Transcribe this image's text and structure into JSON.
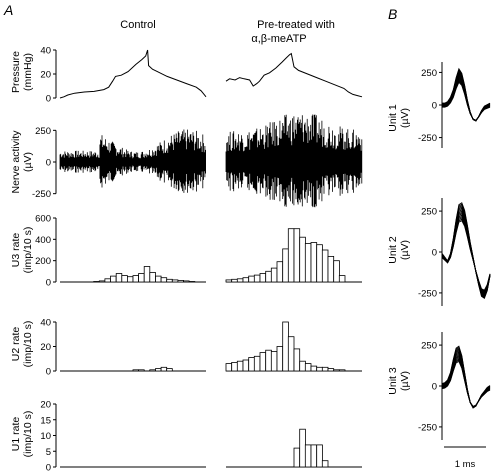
{
  "panels": {
    "a": "A",
    "b": "B"
  },
  "columns": {
    "control": "Control",
    "pretreated_line1": "Pre-treated with",
    "pretreated_line2": "α,β-meATP"
  },
  "scale_bar": {
    "label": "1 ms"
  },
  "chart_data": [
    {
      "type": "line",
      "id": "pressure",
      "ylabel": [
        "Pressure",
        "(mmHg)"
      ],
      "ylim": [
        0,
        45
      ],
      "yticks": [
        0,
        20,
        40
      ],
      "x_label": "",
      "series": [
        {
          "column": "control",
          "x": [
            0,
            4,
            8,
            15,
            25,
            35,
            45,
            50,
            54,
            57,
            63,
            70,
            78,
            84,
            88,
            90,
            91,
            95,
            100,
            110,
            120,
            130,
            140,
            145,
            148,
            150
          ],
          "values": [
            0,
            1,
            2.5,
            4,
            5,
            5.5,
            7,
            9,
            14,
            18,
            19,
            22,
            28,
            32,
            35,
            40,
            27,
            24,
            22,
            18,
            15,
            12,
            9,
            6,
            3,
            1
          ]
        },
        {
          "column": "pretreated",
          "x": [
            0,
            4,
            10,
            15,
            20,
            26,
            30,
            34,
            37,
            42,
            48,
            55,
            62,
            66,
            70,
            72,
            75,
            80,
            90,
            100,
            110,
            120,
            130,
            135,
            140,
            145,
            150
          ],
          "values": [
            14,
            16,
            15,
            17,
            16,
            15,
            10,
            12,
            14,
            19,
            21,
            25,
            30,
            33,
            36,
            37,
            26,
            23,
            20,
            17,
            14,
            11,
            8,
            5,
            3,
            2,
            1
          ]
        }
      ]
    },
    {
      "type": "line",
      "id": "nerve",
      "ylabel": [
        "Nerve activity",
        "(µV)"
      ],
      "ylim": [
        -300,
        300
      ],
      "yticks": [
        -250,
        0,
        250
      ],
      "series": [
        {
          "column": "control",
          "name": ""
        },
        {
          "column": "pretreated",
          "name": ""
        }
      ]
    },
    {
      "type": "bar",
      "id": "u3",
      "ylabel": [
        "U3 rate",
        "(imp/10 s)"
      ],
      "ylim": [
        0,
        600
      ],
      "yticks": [
        0,
        200,
        400,
        600
      ],
      "series": [
        {
          "column": "control",
          "values": [
            0,
            0,
            0,
            0,
            0,
            0,
            5,
            10,
            30,
            55,
            80,
            60,
            50,
            60,
            80,
            145,
            90,
            55,
            40,
            25,
            20,
            15,
            10,
            5,
            0,
            0
          ]
        },
        {
          "column": "pretreated",
          "values": [
            20,
            25,
            30,
            40,
            55,
            65,
            80,
            100,
            130,
            190,
            310,
            500,
            500,
            420,
            360,
            370,
            350,
            300,
            240,
            200,
            60,
            0,
            0,
            0
          ]
        }
      ]
    },
    {
      "type": "bar",
      "id": "u2",
      "ylabel": [
        "U2 rate",
        "(imp/10 s)"
      ],
      "ylim": [
        0,
        40
      ],
      "yticks": [
        0,
        20,
        40
      ],
      "series": [
        {
          "column": "control",
          "values": [
            0,
            0,
            0,
            0,
            0,
            0,
            0,
            0,
            0,
            0,
            0,
            0,
            0,
            1,
            1,
            0,
            1,
            2,
            3,
            2,
            0,
            0,
            0,
            0,
            0,
            0
          ]
        },
        {
          "column": "pretreated",
          "values": [
            6,
            7,
            8,
            9,
            11,
            12,
            15,
            17,
            16,
            20,
            40,
            28,
            18,
            8,
            6,
            4,
            3,
            3,
            2,
            1,
            1,
            0,
            0,
            0
          ]
        }
      ]
    },
    {
      "type": "bar",
      "id": "u1",
      "ylabel": [
        "U1 rate",
        "(imp/10 s)"
      ],
      "ylim": [
        0,
        20
      ],
      "yticks": [
        0,
        5,
        10,
        15,
        20
      ],
      "series": [
        {
          "column": "control",
          "values": [
            0,
            0,
            0,
            0,
            0,
            0,
            0,
            0,
            0,
            0,
            0,
            0,
            0,
            0,
            0,
            0,
            0,
            0,
            0,
            0,
            0,
            0,
            0,
            0,
            0,
            0
          ]
        },
        {
          "column": "pretreated",
          "values": [
            0,
            0,
            0,
            0,
            0,
            0,
            0,
            0,
            0,
            0,
            0,
            0,
            6,
            12,
            7,
            7,
            7,
            2,
            0,
            0,
            0,
            0,
            0,
            0
          ]
        }
      ]
    },
    {
      "type": "line",
      "id": "waveforms",
      "units": [
        {
          "ylabel": [
            "Unit 1",
            "(µV)"
          ],
          "yticks": [
            -250,
            0,
            250
          ],
          "ylim": [
            -330,
            330
          ],
          "x": [
            0,
            0.1,
            0.2,
            0.3,
            0.4,
            0.5,
            0.6,
            0.7,
            0.8,
            0.9,
            1.0,
            1.1,
            1.2,
            1.3,
            1.4,
            1.5,
            1.6,
            1.7
          ],
          "values": [
            0,
            0,
            10,
            40,
            90,
            170,
            230,
            200,
            120,
            20,
            -60,
            -110,
            -120,
            -90,
            -50,
            -20,
            -10,
            0
          ]
        },
        {
          "ylabel": [
            "Unit 2",
            "(µV)"
          ],
          "yticks": [
            -250,
            0,
            250
          ],
          "ylim": [
            -330,
            330
          ],
          "x": [
            0,
            0.1,
            0.2,
            0.3,
            0.4,
            0.5,
            0.6,
            0.7,
            0.8,
            0.9,
            1.0,
            1.1,
            1.2,
            1.3,
            1.4,
            1.5,
            1.6,
            1.7
          ],
          "values": [
            -20,
            -40,
            -60,
            -20,
            60,
            160,
            240,
            250,
            210,
            130,
            40,
            -40,
            -120,
            -190,
            -250,
            -260,
            -220,
            -140
          ]
        },
        {
          "ylabel": [
            "Unit 3",
            "(µV)"
          ],
          "yticks": [
            -250,
            0,
            250
          ],
          "ylim": [
            -330,
            330
          ],
          "x": [
            0,
            0.1,
            0.2,
            0.3,
            0.4,
            0.5,
            0.6,
            0.7,
            0.8,
            0.9,
            1.0,
            1.1,
            1.2,
            1.3,
            1.4,
            1.5,
            1.6,
            1.7
          ],
          "values": [
            0,
            5,
            20,
            60,
            130,
            190,
            200,
            150,
            60,
            -30,
            -100,
            -130,
            -120,
            -90,
            -60,
            -40,
            -20,
            -10
          ]
        }
      ]
    }
  ]
}
